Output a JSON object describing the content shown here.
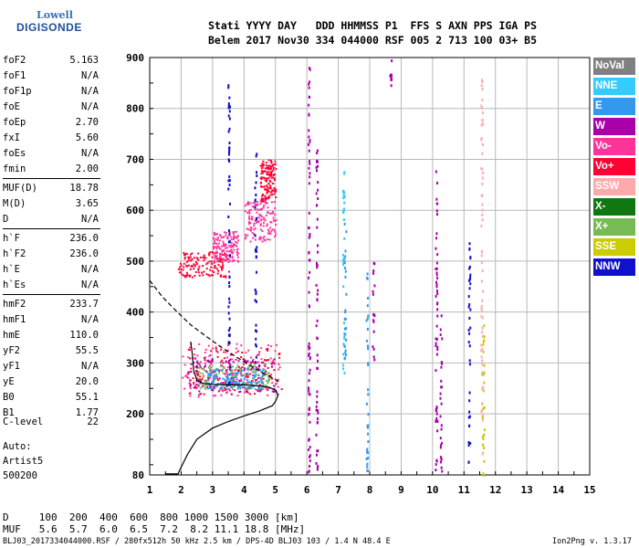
{
  "logo": {
    "line1": "Lowell",
    "line2": "DIGISONDE"
  },
  "header": {
    "line1": "Stati YYYY DAY   DDD HHMMSS P1  FFS S AXN PPS IGA PS",
    "line2": "Belem 2017 Nov30 334 044000 RSF 005 2 713 100 03+ B5"
  },
  "params": [
    {
      "name": "foF2",
      "value": "5.163"
    },
    {
      "name": "foF1",
      "value": "N/A"
    },
    {
      "name": "foF1p",
      "value": "N/A"
    },
    {
      "name": "foE",
      "value": "N/A"
    },
    {
      "name": "foEp",
      "value": "2.70"
    },
    {
      "name": "fxI",
      "value": "5.60"
    },
    {
      "name": "foEs",
      "value": "N/A"
    },
    {
      "name": "fmin",
      "value": "2.00"
    },
    {
      "name": "MUF(D)",
      "value": "18.78"
    },
    {
      "name": "M(D)",
      "value": "3.65"
    },
    {
      "name": "D",
      "value": "N/A"
    },
    {
      "name": "h`F",
      "value": "236.0"
    },
    {
      "name": "h`F2",
      "value": "236.0"
    },
    {
      "name": "h`E",
      "value": "N/A"
    },
    {
      "name": "h`Es",
      "value": "N/A"
    },
    {
      "name": "hmF2",
      "value": "233.7"
    },
    {
      "name": "hmF1",
      "value": "N/A"
    },
    {
      "name": "hmE",
      "value": "110.0"
    },
    {
      "name": "yF2",
      "value": "55.5"
    },
    {
      "name": "yF1",
      "value": "N/A"
    },
    {
      "name": "yE",
      "value": "20.0"
    },
    {
      "name": "B0",
      "value": "55.1"
    },
    {
      "name": "B1",
      "value": "1.77"
    }
  ],
  "clevel": {
    "name": "C-level",
    "value": "22"
  },
  "auto": {
    "line1": "Auto:",
    "line2": "Artist5",
    "line3": "500200"
  },
  "legend": [
    {
      "label": "NoVal",
      "color": "#808080"
    },
    {
      "label": "NNE",
      "color": "#33ccff"
    },
    {
      "label": "E",
      "color": "#3399ee"
    },
    {
      "label": "W",
      "color": "#aa00aa"
    },
    {
      "label": "Vo-",
      "color": "#ff3399"
    },
    {
      "label": "Vo+",
      "color": "#ff0033"
    },
    {
      "label": "SSW",
      "color": "#ffaaaa"
    },
    {
      "label": "X-",
      "color": "#117711"
    },
    {
      "label": "X+",
      "color": "#77bb55"
    },
    {
      "label": "SSE",
      "color": "#cccc00"
    },
    {
      "label": "NNW",
      "color": "#1111cc"
    }
  ],
  "footer": {
    "line1": "D     100  200  400  600  800 1000 1500 3000 [km]",
    "line2": "MUF   5.6  5.7  6.0  6.5  7.2  8.2 11.1 18.8 [MHz]",
    "meta": "BLJ03_2017334044000.RSF / 280fx512h 50 kHz 2.5 km / DPS-4D BLJ03 103 / 1.4 N 48.4 E",
    "version": "Ion2Png v. 1.3.17"
  },
  "chart_data": {
    "type": "scatter",
    "xlabel": "",
    "ylabel": "",
    "xlim": [
      1,
      15
    ],
    "ylim": [
      80,
      900
    ],
    "xticks": [
      1,
      2,
      3,
      4,
      5,
      6,
      7,
      8,
      9,
      10,
      11,
      12,
      13,
      14,
      15
    ],
    "yticks": [
      80,
      200,
      300,
      400,
      500,
      600,
      700,
      800,
      900
    ],
    "grid": true,
    "legend_placement": "right",
    "curves": [
      {
        "name": "profile",
        "style": "solid",
        "points": [
          [
            1.5,
            82
          ],
          [
            1.9,
            82
          ],
          [
            2.0,
            95
          ],
          [
            2.2,
            120
          ],
          [
            2.5,
            150
          ],
          [
            3.0,
            172
          ],
          [
            3.5,
            185
          ],
          [
            4.0,
            196
          ],
          [
            4.5,
            206
          ],
          [
            4.9,
            216
          ],
          [
            5.0,
            224
          ],
          [
            5.08,
            236
          ],
          [
            5.02,
            246
          ],
          [
            4.8,
            252
          ],
          [
            4.5,
            255
          ],
          [
            4.0,
            257
          ],
          [
            3.5,
            257
          ],
          [
            3.0,
            258
          ],
          [
            2.7,
            260
          ],
          [
            2.5,
            267
          ],
          [
            2.4,
            285
          ],
          [
            2.35,
            320
          ],
          [
            2.3,
            342
          ]
        ]
      },
      {
        "name": "extrapolation",
        "style": "dashed",
        "points": [
          [
            1.0,
            462
          ],
          [
            1.4,
            430
          ],
          [
            1.8,
            405
          ],
          [
            2.3,
            375
          ],
          [
            2.8,
            352
          ],
          [
            3.3,
            330
          ],
          [
            3.8,
            310
          ],
          [
            4.2,
            295
          ],
          [
            4.6,
            280
          ],
          [
            5.0,
            268
          ],
          [
            5.12,
            260
          ]
        ]
      }
    ],
    "echo_clusters": [
      {
        "x": [
          2.0,
          5.2
        ],
        "y": [
          235,
          340
        ],
        "color": "#ff3399"
      },
      {
        "x": [
          2.2,
          5.2
        ],
        "y": [
          240,
          330
        ],
        "color": "#ff0033"
      },
      {
        "x": [
          2.2,
          5.0
        ],
        "y": [
          245,
          310
        ],
        "color": "#aa00aa"
      },
      {
        "x": [
          2.5,
          4.8
        ],
        "y": [
          250,
          300
        ],
        "color": "#77bb55"
      },
      {
        "x": [
          2.8,
          4.6
        ],
        "y": [
          250,
          290
        ],
        "color": "#3399ee"
      },
      {
        "x": [
          1.9,
          3.5
        ],
        "y": [
          470,
          520
        ],
        "color": "#ff0033"
      },
      {
        "x": [
          3.0,
          3.8
        ],
        "y": [
          500,
          560
        ],
        "color": "#ff3399"
      },
      {
        "x": [
          4.0,
          5.0
        ],
        "y": [
          540,
          620
        ],
        "color": "#ff3399"
      },
      {
        "x": [
          4.5,
          5.0
        ],
        "y": [
          620,
          700
        ],
        "color": "#ff0033"
      }
    ],
    "vertical_streaks": [
      {
        "x": 3.5,
        "y": [
          240,
          900
        ],
        "color": "#1111cc"
      },
      {
        "x": 4.35,
        "y": [
          300,
          720
        ],
        "color": "#1111cc"
      },
      {
        "x": 6.05,
        "y": [
          80,
          900
        ],
        "color": "#aa00aa"
      },
      {
        "x": 6.3,
        "y": [
          80,
          720
        ],
        "color": "#aa00aa"
      },
      {
        "x": 7.15,
        "y": [
          280,
          700
        ],
        "color": "#33ccff"
      },
      {
        "x": 7.2,
        "y": [
          300,
          580
        ],
        "color": "#3399ee"
      },
      {
        "x": 7.9,
        "y": [
          80,
          480
        ],
        "color": "#3399ee"
      },
      {
        "x": 8.1,
        "y": [
          300,
          500
        ],
        "color": "#aa00aa"
      },
      {
        "x": 8.65,
        "y": [
          840,
          900
        ],
        "color": "#aa00aa"
      },
      {
        "x": 10.1,
        "y": [
          80,
          700
        ],
        "color": "#aa00aa"
      },
      {
        "x": 10.25,
        "y": [
          80,
          400
        ],
        "color": "#aa00aa"
      },
      {
        "x": 11.15,
        "y": [
          100,
          540
        ],
        "color": "#1111cc"
      },
      {
        "x": 11.55,
        "y": [
          80,
          860
        ],
        "color": "#ffaaaa"
      },
      {
        "x": 11.6,
        "y": [
          80,
          380
        ],
        "color": "#cccc00"
      }
    ]
  }
}
